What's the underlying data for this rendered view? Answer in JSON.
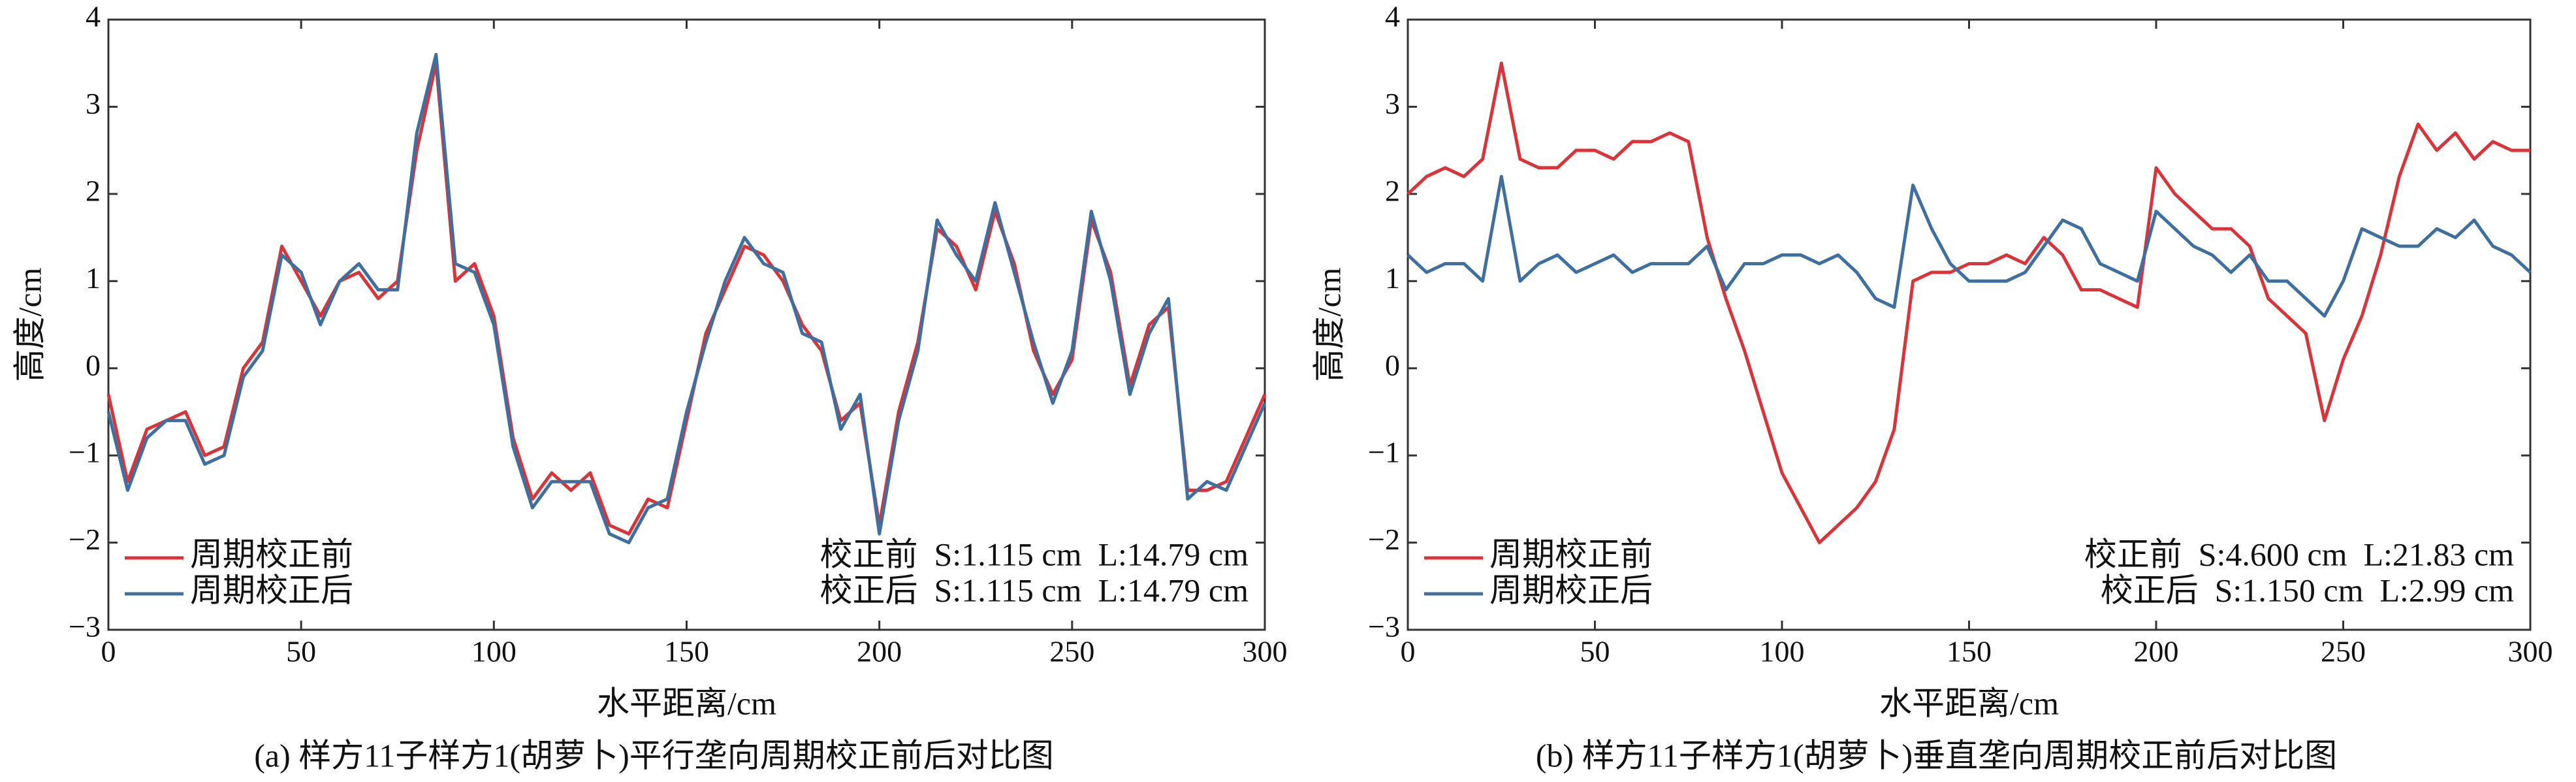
{
  "chart_data": [
    {
      "type": "line",
      "caption": "(a) 样方11子样方1(胡萝卜)平行垄向周期校正前后对比图",
      "xlabel": "水平距离/cm",
      "ylabel": "高度/cm",
      "x": [
        0,
        5,
        10,
        15,
        20,
        25,
        30,
        35,
        40,
        45,
        50,
        55,
        60,
        65,
        70,
        75,
        80,
        85,
        90,
        95,
        100,
        105,
        110,
        115,
        120,
        125,
        130,
        135,
        140,
        145,
        150,
        155,
        160,
        165,
        170,
        175,
        180,
        185,
        190,
        195,
        200,
        205,
        210,
        215,
        220,
        225,
        230,
        235,
        240,
        245,
        250,
        255,
        260,
        265,
        270,
        275,
        280,
        285,
        290,
        295,
        300
      ],
      "series": [
        {
          "name": "周期校正前",
          "color": "#d9343a",
          "values": [
            -0.3,
            -1.3,
            -0.7,
            -0.6,
            -0.5,
            -1.0,
            -0.9,
            0.0,
            0.3,
            1.4,
            1.0,
            0.6,
            1.0,
            1.1,
            0.8,
            1.0,
            2.5,
            3.5,
            1.0,
            1.2,
            0.6,
            -0.8,
            -1.5,
            -1.2,
            -1.4,
            -1.2,
            -1.8,
            -1.9,
            -1.5,
            -1.6,
            -0.6,
            0.4,
            0.9,
            1.4,
            1.3,
            1.0,
            0.5,
            0.2,
            -0.6,
            -0.4,
            -1.8,
            -0.5,
            0.3,
            1.6,
            1.4,
            0.9,
            1.8,
            1.2,
            0.2,
            -0.3,
            0.1,
            1.7,
            1.1,
            -0.2,
            0.5,
            0.7,
            -1.4,
            -1.4,
            -1.3,
            -0.8,
            -0.3
          ]
        },
        {
          "name": "周期校正后",
          "color": "#3f6f9f",
          "values": [
            -0.5,
            -1.4,
            -0.8,
            -0.6,
            -0.6,
            -1.1,
            -1.0,
            -0.1,
            0.2,
            1.3,
            1.1,
            0.5,
            1.0,
            1.2,
            0.9,
            0.9,
            2.7,
            3.6,
            1.2,
            1.1,
            0.5,
            -0.9,
            -1.6,
            -1.3,
            -1.3,
            -1.3,
            -1.9,
            -2.0,
            -1.6,
            -1.5,
            -0.5,
            0.3,
            1.0,
            1.5,
            1.2,
            1.1,
            0.4,
            0.3,
            -0.7,
            -0.3,
            -1.9,
            -0.6,
            0.2,
            1.7,
            1.3,
            1.0,
            1.9,
            1.1,
            0.3,
            -0.4,
            0.2,
            1.8,
            1.0,
            -0.3,
            0.4,
            0.8,
            -1.5,
            -1.3,
            -1.4,
            -0.9,
            -0.4
          ]
        }
      ],
      "annotations": [
        "校正前  S:1.115 cm  L:14.79 cm",
        "校正后  S:1.115 cm  L:14.79 cm"
      ],
      "xlim": [
        0,
        300
      ],
      "xticks": [
        0,
        50,
        100,
        150,
        200,
        250,
        300
      ],
      "ylim": [
        -3,
        4
      ],
      "yticks": [
        {
          "value": -3,
          "label": "−3"
        },
        {
          "value": -2,
          "label": "−2"
        },
        {
          "value": -1,
          "label": "−1"
        },
        0,
        1,
        2,
        3,
        4
      ],
      "legend": "lower left"
    },
    {
      "type": "line",
      "caption": "(b) 样方11子样方1(胡萝卜)垂直垄向周期校正前后对比图",
      "xlabel": "水平距离/cm",
      "ylabel": "高度/cm",
      "x": [
        0,
        5,
        10,
        15,
        20,
        25,
        30,
        35,
        40,
        45,
        50,
        55,
        60,
        65,
        70,
        75,
        80,
        85,
        90,
        95,
        100,
        105,
        110,
        115,
        120,
        125,
        130,
        135,
        140,
        145,
        150,
        155,
        160,
        165,
        170,
        175,
        180,
        185,
        190,
        195,
        200,
        205,
        210,
        215,
        220,
        225,
        230,
        235,
        240,
        245,
        250,
        255,
        260,
        265,
        270,
        275,
        280,
        285,
        290,
        295,
        300
      ],
      "series": [
        {
          "name": "周期校正前",
          "color": "#d9343a",
          "values": [
            2.0,
            2.2,
            2.3,
            2.2,
            2.4,
            3.5,
            2.4,
            2.3,
            2.3,
            2.5,
            2.5,
            2.4,
            2.6,
            2.6,
            2.7,
            2.6,
            1.5,
            0.8,
            0.2,
            -0.5,
            -1.2,
            -1.6,
            -2.0,
            -1.8,
            -1.6,
            -1.3,
            -0.7,
            1.0,
            1.1,
            1.1,
            1.2,
            1.2,
            1.3,
            1.2,
            1.5,
            1.3,
            0.9,
            0.9,
            0.8,
            0.7,
            2.3,
            2.0,
            1.8,
            1.6,
            1.6,
            1.4,
            0.8,
            0.6,
            0.4,
            -0.6,
            0.1,
            0.6,
            1.3,
            2.2,
            2.8,
            2.5,
            2.7,
            2.4,
            2.6,
            2.5,
            2.5
          ]
        },
        {
          "name": "周期校正后",
          "color": "#3f6f9f",
          "values": [
            1.3,
            1.1,
            1.2,
            1.2,
            1.0,
            2.2,
            1.0,
            1.2,
            1.3,
            1.1,
            1.2,
            1.3,
            1.1,
            1.2,
            1.2,
            1.2,
            1.4,
            0.9,
            1.2,
            1.2,
            1.3,
            1.3,
            1.2,
            1.3,
            1.1,
            0.8,
            0.7,
            2.1,
            1.6,
            1.2,
            1.0,
            1.0,
            1.0,
            1.1,
            1.4,
            1.7,
            1.6,
            1.2,
            1.1,
            1.0,
            1.8,
            1.6,
            1.4,
            1.3,
            1.1,
            1.3,
            1.0,
            1.0,
            0.8,
            0.6,
            1.0,
            1.6,
            1.5,
            1.4,
            1.4,
            1.6,
            1.5,
            1.7,
            1.4,
            1.3,
            1.1
          ]
        }
      ],
      "annotations": [
        "校正前  S:4.600 cm  L:21.83 cm",
        "校正后  S:1.150 cm  L:2.99 cm"
      ],
      "xlim": [
        0,
        300
      ],
      "xticks": [
        0,
        50,
        100,
        150,
        200,
        250,
        300
      ],
      "ylim": [
        -3,
        4
      ],
      "yticks": [
        {
          "value": -3,
          "label": "−3"
        },
        {
          "value": -2,
          "label": "−2"
        },
        {
          "value": -1,
          "label": "−1"
        },
        0,
        1,
        2,
        3,
        4
      ],
      "legend": "lower left"
    }
  ]
}
